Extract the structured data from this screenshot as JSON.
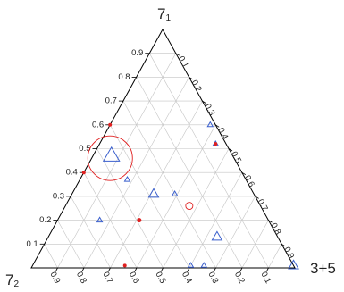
{
  "chart_data": {
    "type": "scatter",
    "subtype": "ternary",
    "vertices": {
      "top": {
        "label": "7",
        "subscript": "1"
      },
      "left": {
        "label": "7",
        "subscript": "2"
      },
      "right": {
        "label": "3+5"
      }
    },
    "ticks": {
      "left_edge": [
        "0.1",
        "0.2",
        "0.3",
        "0.4",
        "0.5",
        "0.6",
        "0.7",
        "0.8",
        "0.9"
      ],
      "right_edge": [
        "0.1",
        "0.2",
        "0.3",
        "0.4",
        "0.5",
        "0.6",
        "0.7",
        "0.8",
        "0.9"
      ],
      "bottom_edge": [
        "0.9",
        "0.8",
        "0.7",
        "0.6",
        "0.5",
        "0.4",
        "0.3",
        "0.2",
        "0.1"
      ]
    },
    "grid": true,
    "colors": {
      "blue": "#3a5fcd",
      "red": "#e02020",
      "grid": "#c4c4c4",
      "axis": "#000000"
    },
    "series": [
      {
        "color": "blue",
        "marker": "triangle",
        "points": [
          {
            "a": 0.47,
            "r": 0.07,
            "size": 18
          },
          {
            "a": 0.31,
            "r": 0.31,
            "size": 11
          },
          {
            "a": 0.31,
            "r": 0.39,
            "size": 6
          },
          {
            "a": 0.37,
            "r": 0.18,
            "size": 6
          },
          {
            "a": 0.6,
            "r": 0.38,
            "size": 6
          },
          {
            "a": 0.52,
            "r": 0.44,
            "size": 6
          },
          {
            "a": 0.13,
            "r": 0.64,
            "size": 11
          },
          {
            "a": 0.2,
            "r": 0.16,
            "size": 6
          },
          {
            "a": 0.01,
            "r": 0.6,
            "size": 6
          },
          {
            "a": 0.01,
            "r": 0.65,
            "size": 6
          },
          {
            "a": 0.01,
            "r": 0.99,
            "size": 11
          }
        ]
      },
      {
        "color": "red",
        "marker": "circle",
        "points": [
          {
            "a": 0.46,
            "r": 0.07,
            "size": 50,
            "ring": true
          },
          {
            "a": 0.26,
            "r": 0.47,
            "size": 8,
            "ring": true
          },
          {
            "a": 0.6,
            "r": 0.0,
            "size": 2
          },
          {
            "a": 0.4,
            "r": 0.0,
            "size": 2
          },
          {
            "a": 0.2,
            "r": 0.31,
            "size": 2.5
          },
          {
            "a": 0.52,
            "r": 0.44,
            "size": 2
          },
          {
            "a": 0.01,
            "r": 0.35,
            "size": 2
          }
        ]
      }
    ]
  }
}
